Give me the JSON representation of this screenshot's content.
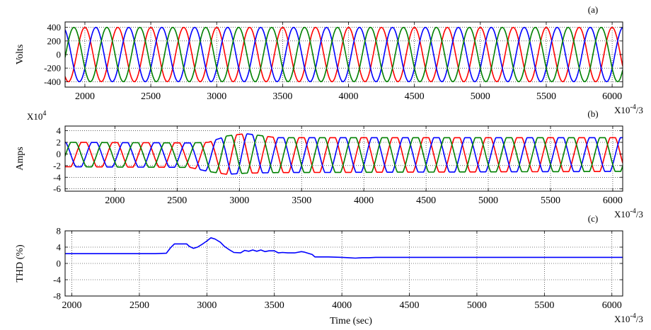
{
  "chart_data": [
    {
      "type": "line",
      "panel_label": "(a)",
      "ylabel": "Volts",
      "xlabel": "",
      "x_multiplier": "X10-4/3",
      "y_multiplier": "",
      "xlim": [
        1850,
        6080
      ],
      "ylim": [
        -480,
        480
      ],
      "xticks": [
        2000,
        2500,
        3000,
        3500,
        4000,
        4500,
        5000,
        5500,
        6000
      ],
      "yticks": [
        400,
        200,
        0,
        -200,
        -400
      ],
      "grid": true,
      "series": [
        {
          "color": "#ff0000",
          "amplitude": 400,
          "period": 250,
          "phase_deg": 0,
          "x": [
            1850,
            1975,
            2100,
            2225,
            2350,
            2475,
            2600,
            2725,
            2850,
            2975,
            3100,
            3225,
            3350,
            3475,
            3600,
            3725,
            3850,
            3975,
            4100,
            4225,
            4350,
            4475,
            4600,
            4725,
            4850,
            4975,
            5100,
            5225,
            5350,
            5475,
            5600,
            5725,
            5850,
            5975,
            6080
          ],
          "peaks": [
            400,
            -400,
            400,
            -400,
            400,
            -400,
            400,
            -400,
            400,
            -400,
            400,
            -400,
            400,
            -400,
            400,
            -400,
            400,
            -400,
            400,
            -400,
            400,
            -400,
            400,
            -400,
            400,
            -400,
            400,
            -400,
            400,
            -400,
            400,
            -400,
            400,
            -400,
            400
          ]
        },
        {
          "color": "#0000ff",
          "amplitude": 400,
          "period": 250,
          "phase_deg": -120
        },
        {
          "color": "#008000",
          "amplitude": 400,
          "period": 250,
          "phase_deg": 120
        }
      ]
    },
    {
      "type": "line",
      "panel_label": "(b)",
      "ylabel": "Amps",
      "xlabel": "",
      "x_multiplier": "X10-4/3",
      "y_multiplier": "X10",
      "y_multiplier_exp": "4",
      "xlim": [
        1600,
        6080
      ],
      "ylim": [
        -6.4,
        4.8
      ],
      "xticks": [
        2000,
        2500,
        3000,
        3500,
        4000,
        4500,
        5000,
        5500,
        6000
      ],
      "yticks": [
        4,
        2,
        0,
        -2,
        -4,
        -6
      ],
      "grid": true,
      "series": [
        {
          "color": "#ff0000",
          "period": 250,
          "phase_deg": 0,
          "amplitude_profile": {
            "x": [
              1600,
              2600,
              2750,
              2900,
              3050,
              3300,
              6080
            ],
            "y": [
              2.1,
              2.1,
              2.5,
              3.3,
              3.4,
              3.0,
              2.9
            ]
          },
          "offset_profile": {
            "x": [
              1600,
              2600,
              2750,
              2900,
              3050,
              3300,
              6080
            ],
            "y": [
              -0.1,
              -0.2,
              -0.5,
              -0.2,
              0.1,
              -0.2,
              -0.1
            ]
          }
        },
        {
          "color": "#0000ff",
          "period": 250,
          "phase_deg": -120,
          "amplitude_profile": {
            "x": [
              1600,
              2600,
              2750,
              2900,
              3050,
              3300,
              6080
            ],
            "y": [
              2.1,
              2.1,
              2.5,
              3.3,
              3.4,
              3.0,
              2.9
            ]
          },
          "offset_profile": {
            "x": [
              1600,
              2600,
              2750,
              2900,
              3050,
              3300,
              6080
            ],
            "y": [
              -0.1,
              -0.2,
              -0.5,
              -0.2,
              0.1,
              -0.2,
              -0.1
            ]
          }
        },
        {
          "color": "#008000",
          "period": 250,
          "phase_deg": 120,
          "amplitude_profile": {
            "x": [
              1600,
              2600,
              2750,
              2900,
              3050,
              3300,
              6080
            ],
            "y": [
              2.1,
              2.1,
              2.5,
              3.3,
              3.4,
              3.0,
              2.9
            ]
          },
          "offset_profile": {
            "x": [
              1600,
              2600,
              2750,
              2900,
              3050,
              3300,
              6080
            ],
            "y": [
              -0.1,
              -0.2,
              -0.5,
              -0.2,
              0.1,
              -0.2,
              -0.1
            ]
          }
        }
      ]
    },
    {
      "type": "line",
      "panel_label": "(c)",
      "ylabel": "THD (%)",
      "xlabel": "Time (sec)",
      "x_multiplier": "X10-4/3",
      "y_multiplier": "",
      "xlim": [
        1950,
        6080
      ],
      "ylim": [
        -8,
        8
      ],
      "xticks": [
        2000,
        2500,
        3000,
        3500,
        4000,
        4500,
        5000,
        5500,
        6000
      ],
      "yticks": [
        8,
        4,
        0,
        -4,
        -8
      ],
      "grid": true,
      "series": [
        {
          "color": "#0000ff",
          "x": [
            1950,
            2620,
            2700,
            2730,
            2760,
            2850,
            2870,
            2900,
            2930,
            2960,
            3000,
            3030,
            3060,
            3100,
            3130,
            3160,
            3200,
            3250,
            3280,
            3310,
            3340,
            3370,
            3400,
            3430,
            3460,
            3500,
            3530,
            3560,
            3600,
            3650,
            3700,
            3720,
            3750,
            3780,
            3800,
            3900,
            4000,
            4050,
            4100,
            4150,
            4200,
            4250,
            6080
          ],
          "y": [
            2.4,
            2.4,
            2.5,
            3.8,
            4.8,
            4.8,
            4.2,
            3.7,
            4.0,
            4.6,
            5.5,
            6.3,
            6.0,
            5.2,
            4.2,
            3.5,
            2.7,
            2.6,
            3.2,
            3.0,
            3.3,
            3.0,
            3.3,
            2.9,
            3.1,
            3.1,
            2.6,
            2.7,
            2.6,
            2.6,
            2.9,
            2.8,
            2.5,
            2.2,
            1.6,
            1.6,
            1.5,
            1.4,
            1.3,
            1.4,
            1.4,
            1.5,
            1.5
          ]
        }
      ]
    }
  ]
}
